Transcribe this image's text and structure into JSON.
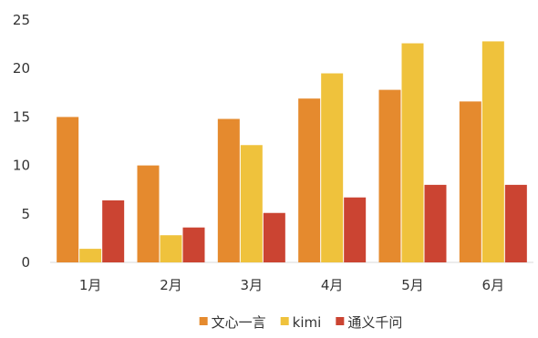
{
  "chart_data": {
    "type": "bar",
    "categories": [
      "1月",
      "2月",
      "3月",
      "4月",
      "5月",
      "6月"
    ],
    "series": [
      {
        "name": "文心一言",
        "color": "#E58A2E",
        "values": [
          15.0,
          10.0,
          14.8,
          16.9,
          17.8,
          16.6
        ]
      },
      {
        "name": "kimi",
        "color": "#EFC23C",
        "values": [
          1.4,
          2.8,
          12.1,
          19.5,
          22.6,
          22.8
        ]
      },
      {
        "name": "通义千问",
        "color": "#CB4432",
        "values": [
          6.4,
          3.6,
          5.1,
          6.7,
          8.0,
          8.0
        ]
      }
    ],
    "yticks": [
      "0",
      "5",
      "10",
      "15",
      "20",
      "25"
    ],
    "ylim": [
      0,
      25
    ],
    "grid": false,
    "legend_position": "bottom"
  }
}
